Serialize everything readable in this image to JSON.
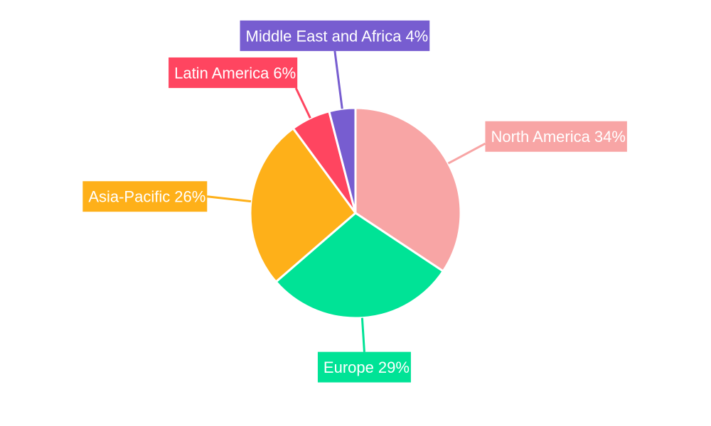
{
  "chart_data": {
    "type": "pie",
    "categories": [
      "North America",
      "Europe",
      "Asia-Pacific",
      "Latin America",
      "Middle East and Africa"
    ],
    "values": [
      34,
      29,
      26,
      6,
      4
    ],
    "value_labels": [
      "34%",
      "29%",
      "26%",
      "6%",
      "4%"
    ],
    "colors": [
      "#f8a5a5",
      "#00e396",
      "#feb019",
      "#ff4560",
      "#775dd0"
    ]
  }
}
